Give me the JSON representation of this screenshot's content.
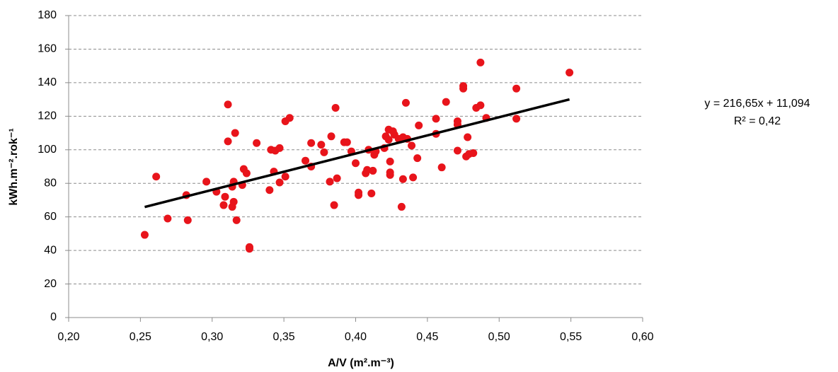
{
  "chart_data": {
    "type": "scatter",
    "x_label": "A/V (m².m⁻³)",
    "y_label": "kWh.m⁻².rok⁻¹",
    "color": "#e8141b",
    "grid": true,
    "xlim": [
      0.2,
      0.6
    ],
    "xticks": [
      {
        "value": 0.2,
        "label": "0,20"
      },
      {
        "value": 0.25,
        "label": "0,25"
      },
      {
        "value": 0.3,
        "label": "0,30"
      },
      {
        "value": 0.35,
        "label": "0,35"
      },
      {
        "value": 0.4,
        "label": "0,40"
      },
      {
        "value": 0.45,
        "label": "0,45"
      },
      {
        "value": 0.5,
        "label": "0,50"
      },
      {
        "value": 0.55,
        "label": "0,55"
      },
      {
        "value": 0.6,
        "label": "0,60"
      }
    ],
    "ylim": [
      0,
      180
    ],
    "yticks": [
      0,
      20,
      40,
      60,
      80,
      100,
      120,
      140,
      160,
      180
    ],
    "trendline": {
      "label": "y = 216,65x + 11,094",
      "r2_label": "R² = 0,42",
      "slope": 216.65,
      "intercept": 11.094,
      "color": "#000000"
    },
    "x": [
      0.253,
      0.261,
      0.269,
      0.282,
      0.283,
      0.296,
      0.303,
      0.308,
      0.309,
      0.311,
      0.311,
      0.314,
      0.314,
      0.315,
      0.315,
      0.316,
      0.317,
      0.321,
      0.322,
      0.324,
      0.326,
      0.326,
      0.331,
      0.34,
      0.341,
      0.343,
      0.344,
      0.347,
      0.347,
      0.351,
      0.351,
      0.354,
      0.365,
      0.369,
      0.369,
      0.376,
      0.378,
      0.382,
      0.383,
      0.385,
      0.386,
      0.387,
      0.392,
      0.394,
      0.397,
      0.4,
      0.402,
      0.402,
      0.407,
      0.408,
      0.409,
      0.411,
      0.412,
      0.413,
      0.414,
      0.42,
      0.421,
      0.423,
      0.423,
      0.424,
      0.424,
      0.424,
      0.426,
      0.427,
      0.43,
      0.433,
      0.432,
      0.433,
      0.435,
      0.436,
      0.439,
      0.44,
      0.443,
      0.444,
      0.456,
      0.456,
      0.46,
      0.463,
      0.471,
      0.471,
      0.471,
      0.475,
      0.475,
      0.477,
      0.478,
      0.479,
      0.482,
      0.484,
      0.487,
      0.487,
      0.491,
      0.512,
      0.512,
      0.549
    ],
    "values": [
      49.3,
      84,
      59,
      73,
      58,
      81,
      75,
      67,
      72,
      127,
      105,
      78,
      66,
      81,
      69,
      110,
      58,
      79,
      88.5,
      86,
      42,
      41,
      104,
      76,
      100,
      87,
      99.5,
      101,
      80.5,
      117,
      84,
      119,
      93.5,
      90,
      104,
      103,
      98.5,
      81,
      108,
      67,
      125,
      83,
      104.5,
      104.5,
      99,
      92,
      74.5,
      73,
      86,
      88,
      100,
      74,
      87.5,
      97,
      99,
      101,
      108,
      112,
      106,
      93,
      85,
      86.5,
      111,
      109,
      106.5,
      107.5,
      66,
      82.5,
      128,
      106.5,
      102.5,
      83.5,
      95,
      114.5,
      118.5,
      109.5,
      89.5,
      128.5,
      117,
      115,
      99.5,
      138,
      136.5,
      96,
      107.5,
      97.5,
      98,
      125,
      126.5,
      152,
      119,
      136.5,
      118.5,
      146
    ]
  }
}
